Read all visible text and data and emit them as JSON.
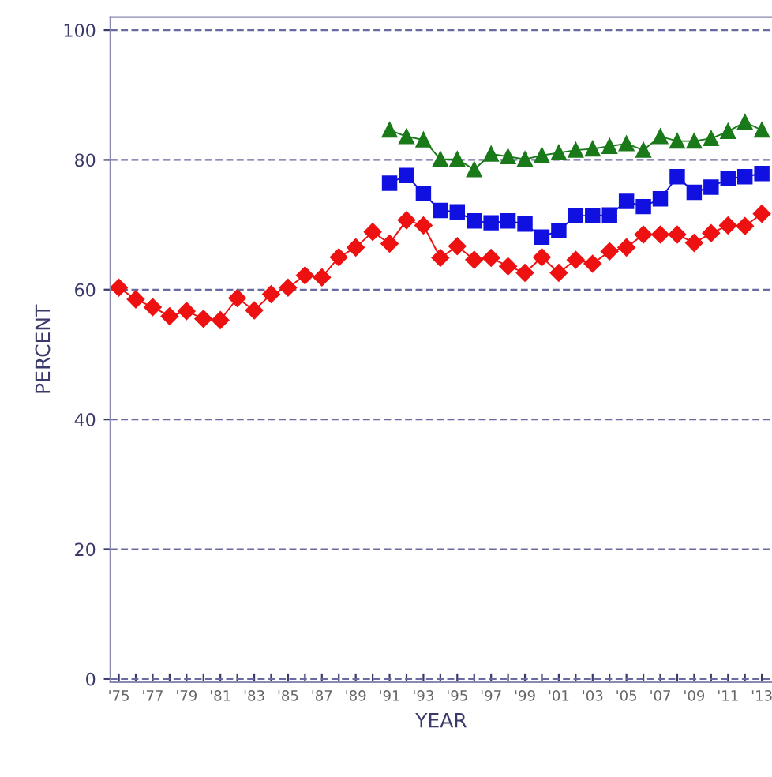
{
  "chart_data": {
    "type": "line",
    "xlabel": "YEAR",
    "ylabel": "PERCENT",
    "xlim": [
      1974.5,
      2013.6
    ],
    "ylim": [
      -0.5,
      102
    ],
    "xticks": [
      {
        "value": 1975,
        "label": "'75"
      },
      {
        "value": 1976,
        "label": null
      },
      {
        "value": 1977,
        "label": "'77"
      },
      {
        "value": 1978,
        "label": null
      },
      {
        "value": 1979,
        "label": "'79"
      },
      {
        "value": 1980,
        "label": null
      },
      {
        "value": 1981,
        "label": "'81"
      },
      {
        "value": 1982,
        "label": null
      },
      {
        "value": 1983,
        "label": "'83"
      },
      {
        "value": 1984,
        "label": null
      },
      {
        "value": 1985,
        "label": "'85"
      },
      {
        "value": 1986,
        "label": null
      },
      {
        "value": 1987,
        "label": "'87"
      },
      {
        "value": 1988,
        "label": null
      },
      {
        "value": 1989,
        "label": "'89"
      },
      {
        "value": 1990,
        "label": null
      },
      {
        "value": 1991,
        "label": "'91"
      },
      {
        "value": 1992,
        "label": null
      },
      {
        "value": 1993,
        "label": "'93"
      },
      {
        "value": 1994,
        "label": null
      },
      {
        "value": 1995,
        "label": "'95"
      },
      {
        "value": 1996,
        "label": null
      },
      {
        "value": 1997,
        "label": "'97"
      },
      {
        "value": 1998,
        "label": null
      },
      {
        "value": 1999,
        "label": "'99"
      },
      {
        "value": 2000,
        "label": null
      },
      {
        "value": 2001,
        "label": "'01"
      },
      {
        "value": 2002,
        "label": null
      },
      {
        "value": 2003,
        "label": "'03"
      },
      {
        "value": 2004,
        "label": null
      },
      {
        "value": 2005,
        "label": "'05"
      },
      {
        "value": 2006,
        "label": null
      },
      {
        "value": 2007,
        "label": "'07"
      },
      {
        "value": 2008,
        "label": null
      },
      {
        "value": 2009,
        "label": "'09"
      },
      {
        "value": 2010,
        "label": null
      },
      {
        "value": 2011,
        "label": "'11"
      },
      {
        "value": 2012,
        "label": null
      },
      {
        "value": 2013,
        "label": "'13"
      }
    ],
    "yticks": [
      0,
      20,
      40,
      60,
      80,
      100
    ],
    "grid": "y",
    "line_style": "solid",
    "series": [
      {
        "color": "#ee1111",
        "marker": "diamond",
        "x": [
          1975,
          1976,
          1977,
          1978,
          1979,
          1980,
          1981,
          1982,
          1983,
          1984,
          1985,
          1986,
          1987,
          1988,
          1989,
          1990,
          1991,
          1992,
          1993,
          1994,
          1995,
          1996,
          1997,
          1998,
          1999,
          2000,
          2001,
          2002,
          2003,
          2004,
          2005,
          2006,
          2007,
          2008,
          2009,
          2010,
          2011,
          2012,
          2013
        ],
        "values": [
          60.3,
          58.5,
          57.3,
          55.9,
          56.7,
          55.5,
          55.3,
          58.7,
          56.8,
          59.3,
          60.3,
          62.2,
          61.9,
          65.0,
          66.5,
          68.9,
          67.1,
          70.7,
          69.9,
          64.9,
          66.7,
          64.6,
          64.9,
          63.6,
          62.6,
          65.0,
          62.6,
          64.6,
          64.0,
          65.9,
          66.5,
          68.5,
          68.5,
          68.5,
          67.2,
          68.7,
          69.9,
          69.8,
          71.7
        ]
      },
      {
        "color": "#1010e0",
        "marker": "square",
        "x": [
          1991,
          1992,
          1993,
          1994,
          1995,
          1996,
          1997,
          1998,
          1999,
          2000,
          2001,
          2002,
          2003,
          2004,
          2005,
          2006,
          2007,
          2008,
          2009,
          2010,
          2011,
          2012,
          2013
        ],
        "values": [
          76.4,
          77.6,
          74.8,
          72.2,
          72.0,
          70.6,
          70.3,
          70.6,
          70.1,
          68.1,
          69.1,
          71.4,
          71.4,
          71.5,
          73.6,
          72.8,
          74.0,
          77.4,
          75.0,
          75.8,
          77.1,
          77.4,
          77.9
        ]
      },
      {
        "color": "#1a7a1a",
        "marker": "triangle",
        "x": [
          1991,
          1992,
          1993,
          1994,
          1995,
          1996,
          1997,
          1998,
          1999,
          2000,
          2001,
          2002,
          2003,
          2004,
          2005,
          2006,
          2007,
          2008,
          2009,
          2010,
          2011,
          2012,
          2013
        ],
        "values": [
          84.6,
          83.6,
          83.1,
          80.1,
          80.1,
          78.5,
          80.9,
          80.5,
          80.1,
          80.7,
          81.1,
          81.5,
          81.7,
          82.1,
          82.5,
          81.5,
          83.6,
          82.9,
          82.9,
          83.3,
          84.4,
          85.8,
          84.6
        ]
      }
    ]
  }
}
